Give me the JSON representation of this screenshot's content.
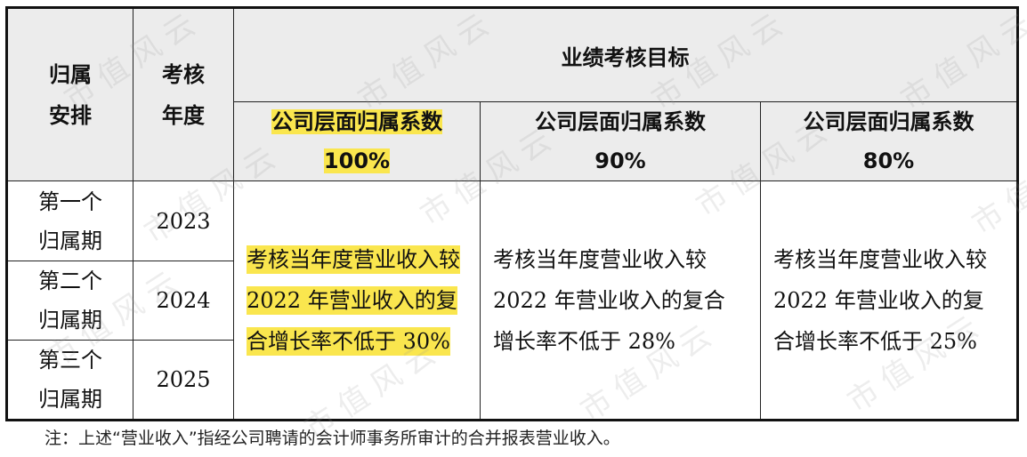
{
  "table": {
    "header": {
      "arrangement": "归属安排",
      "year": "考核年度",
      "target": "业绩考核目标",
      "coef1": "公司层面归属系数 100%",
      "coef2": "公司层面归属系数 90%",
      "coef3": "公司层面归属系数 80%"
    },
    "rows": [
      {
        "period": "第一个归属期",
        "year": "2023"
      },
      {
        "period": "第二个归属期",
        "year": "2024"
      },
      {
        "period": "第三个归属期",
        "year": "2025"
      }
    ],
    "targets": {
      "coef1": "考核当年度营业收入较 2022 年营业收入的复合增长率不低于 30%",
      "coef2": "考核当年度营业收入较 2022 年营业收入的复合增长率不低于 28%",
      "coef3": "考核当年度营业收入较 2022 年营业收入的复合增长率不低于 25%"
    }
  },
  "note": "注：上述“营业收入”指经公司聘请的会计师事务所审计的合并报表营业收入。",
  "watermark": "市值风云",
  "colors": {
    "highlight": "#fae64e",
    "header_bg": "#ececec"
  }
}
